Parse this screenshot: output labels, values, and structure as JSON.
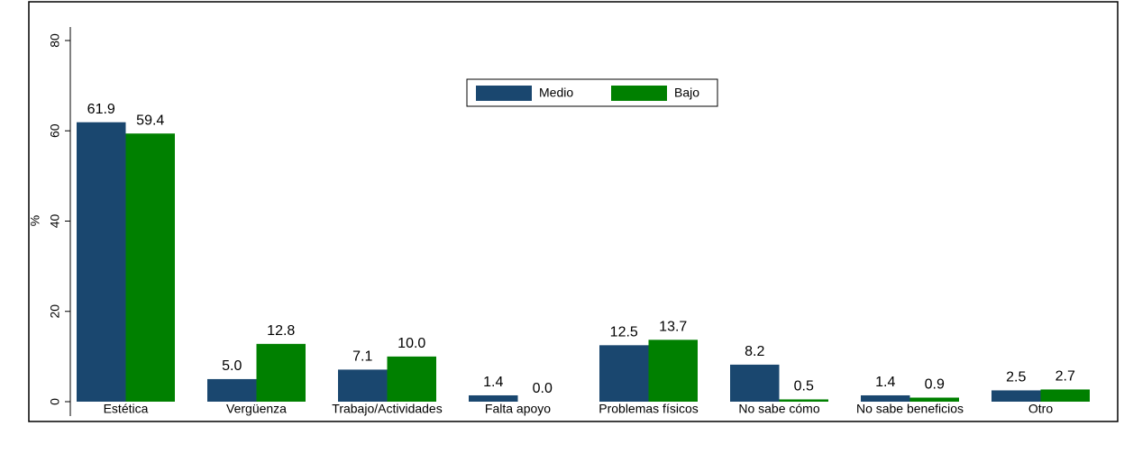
{
  "chart_data": {
    "type": "bar",
    "categories": [
      "Estética",
      "Vergüenza",
      "Trabajo/Actividades",
      "Falta apoyo",
      "Problemas físicos",
      "No sabe cómo",
      "No sabe beneficios",
      "Otro"
    ],
    "series": [
      {
        "name": "Medio",
        "color": "#1a476f",
        "values": [
          61.9,
          5.0,
          7.1,
          1.4,
          12.5,
          8.2,
          1.4,
          2.5
        ],
        "value_labels": [
          "61.9",
          "5.0",
          "7.1",
          "1.4",
          "12.5",
          "8.2",
          "1.4",
          "2.5"
        ]
      },
      {
        "name": "Bajo",
        "color": "#008000",
        "values": [
          59.4,
          12.8,
          10.0,
          0.0,
          13.7,
          0.5,
          0.9,
          2.7
        ],
        "value_labels": [
          "59.4",
          "12.8",
          "10.0",
          "0.0",
          "13.7",
          "0.5",
          "0.9",
          "2.7"
        ]
      }
    ],
    "y_label": "%",
    "ylim": [
      0,
      80
    ],
    "yticks": [
      0,
      20,
      40,
      60,
      80
    ],
    "grid": false,
    "legend": "top"
  }
}
